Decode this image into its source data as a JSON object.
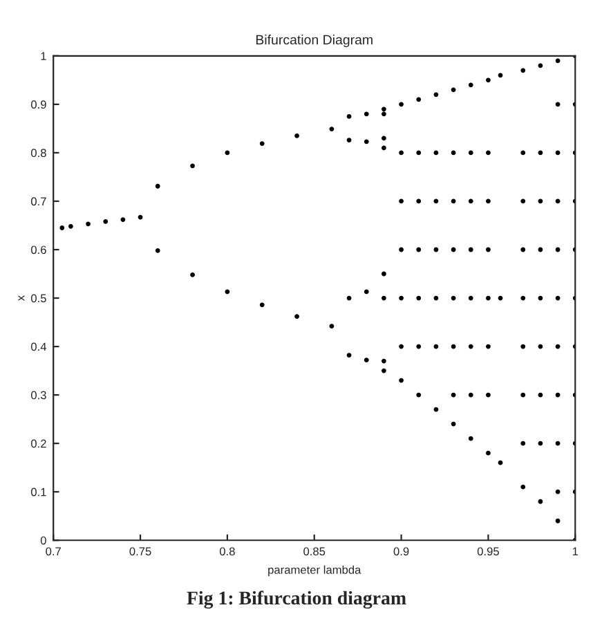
{
  "chart_data": {
    "type": "scatter",
    "title": "Bifurcation Diagram",
    "xlabel": "parameter lambda",
    "ylabel": "x",
    "annotations": [
      "Fig 1: Bifurcation diagram"
    ],
    "xlim": [
      0.7,
      1
    ],
    "xticks": [
      0.7,
      0.75,
      0.8,
      0.85,
      0.9,
      0.95,
      1
    ],
    "ylim": [
      0,
      1
    ],
    "yticks": [
      0,
      0.1,
      0.2,
      0.3,
      0.4,
      0.5,
      0.6,
      0.7,
      0.8,
      0.9,
      1
    ],
    "grid": false,
    "legend": false,
    "marker": "circle",
    "series": [
      {
        "color": "#000000",
        "x": [
          0.705,
          0.71,
          0.72,
          0.73,
          0.74,
          0.75,
          0.76,
          0.76,
          0.78,
          0.78,
          0.8,
          0.8,
          0.82,
          0.82,
          0.84,
          0.84,
          0.86,
          0.86,
          0.87,
          0.87,
          0.87,
          0.87,
          0.88,
          0.88,
          0.88,
          0.88,
          0.89,
          0.89,
          0.89,
          0.89,
          0.89,
          0.89,
          0.89,
          0.89,
          0.9,
          0.9,
          0.9,
          0.9,
          0.9,
          0.9,
          0.9,
          0.91,
          0.91,
          0.91,
          0.91,
          0.91,
          0.91,
          0.91,
          0.92,
          0.92,
          0.92,
          0.92,
          0.92,
          0.92,
          0.92,
          0.93,
          0.93,
          0.93,
          0.93,
          0.93,
          0.93,
          0.93,
          0.93,
          0.94,
          0.94,
          0.94,
          0.94,
          0.94,
          0.94,
          0.94,
          0.94,
          0.95,
          0.95,
          0.95,
          0.95,
          0.95,
          0.95,
          0.95,
          0.95,
          0.957,
          0.957,
          0.957,
          0.97,
          0.97,
          0.97,
          0.97,
          0.97,
          0.97,
          0.97,
          0.97,
          0.97,
          0.98,
          0.98,
          0.98,
          0.98,
          0.98,
          0.98,
          0.98,
          0.98,
          0.98,
          0.99,
          0.99,
          0.99,
          0.99,
          0.99,
          0.99,
          0.99,
          0.99,
          0.99,
          0.99,
          0.99,
          1,
          1,
          1,
          1,
          1,
          1,
          1,
          1,
          1,
          1,
          1
        ],
        "values": [
          0.645,
          0.648,
          0.653,
          0.658,
          0.662,
          0.667,
          0.731,
          0.598,
          0.773,
          0.548,
          0.8,
          0.513,
          0.819,
          0.486,
          0.835,
          0.462,
          0.849,
          0.442,
          0.875,
          0.826,
          0.5,
          0.382,
          0.88,
          0.823,
          0.513,
          0.372,
          0.89,
          0.81,
          0.55,
          0.35,
          0.88,
          0.37,
          0.83,
          0.5,
          0.33,
          0.4,
          0.5,
          0.6,
          0.7,
          0.8,
          0.9,
          0.3,
          0.4,
          0.5,
          0.6,
          0.7,
          0.8,
          0.91,
          0.27,
          0.4,
          0.5,
          0.6,
          0.7,
          0.8,
          0.92,
          0.24,
          0.3,
          0.4,
          0.5,
          0.6,
          0.7,
          0.8,
          0.93,
          0.21,
          0.3,
          0.4,
          0.5,
          0.6,
          0.7,
          0.8,
          0.94,
          0.18,
          0.3,
          0.4,
          0.5,
          0.6,
          0.7,
          0.8,
          0.95,
          0.16,
          0.5,
          0.96,
          0.11,
          0.2,
          0.3,
          0.4,
          0.5,
          0.6,
          0.7,
          0.8,
          0.97,
          0.08,
          0.2,
          0.3,
          0.4,
          0.5,
          0.6,
          0.7,
          0.8,
          0.98,
          0.04,
          0.1,
          0.2,
          0.3,
          0.4,
          0.5,
          0.6,
          0.7,
          0.8,
          0.9,
          0.99,
          0,
          0.1,
          0.2,
          0.3,
          0.4,
          0.5,
          0.6,
          0.7,
          0.8,
          0.9,
          1
        ]
      }
    ]
  }
}
